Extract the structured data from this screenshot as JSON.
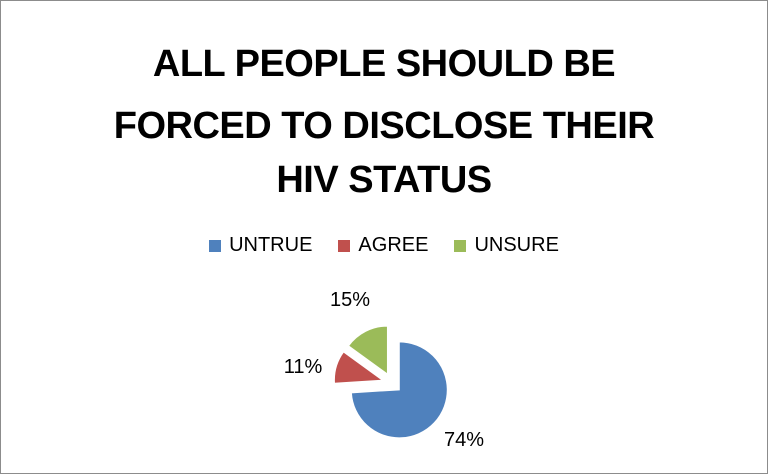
{
  "chart_data": {
    "type": "pie",
    "title_lines": [
      "ALL PEOPLE SHOULD BE",
      "FORCED TO DISCLOSE THEIR",
      "HIV STATUS"
    ],
    "legend_position": "top",
    "slices": [
      {
        "name": "UNTRUE",
        "value": 74,
        "label": "74%",
        "color": "#4f81bd"
      },
      {
        "name": "AGREE",
        "value": 11,
        "label": "11%",
        "color": "#c0504d"
      },
      {
        "name": "UNSURE",
        "value": 15,
        "label": "15%",
        "color": "#9bbb59"
      }
    ]
  }
}
